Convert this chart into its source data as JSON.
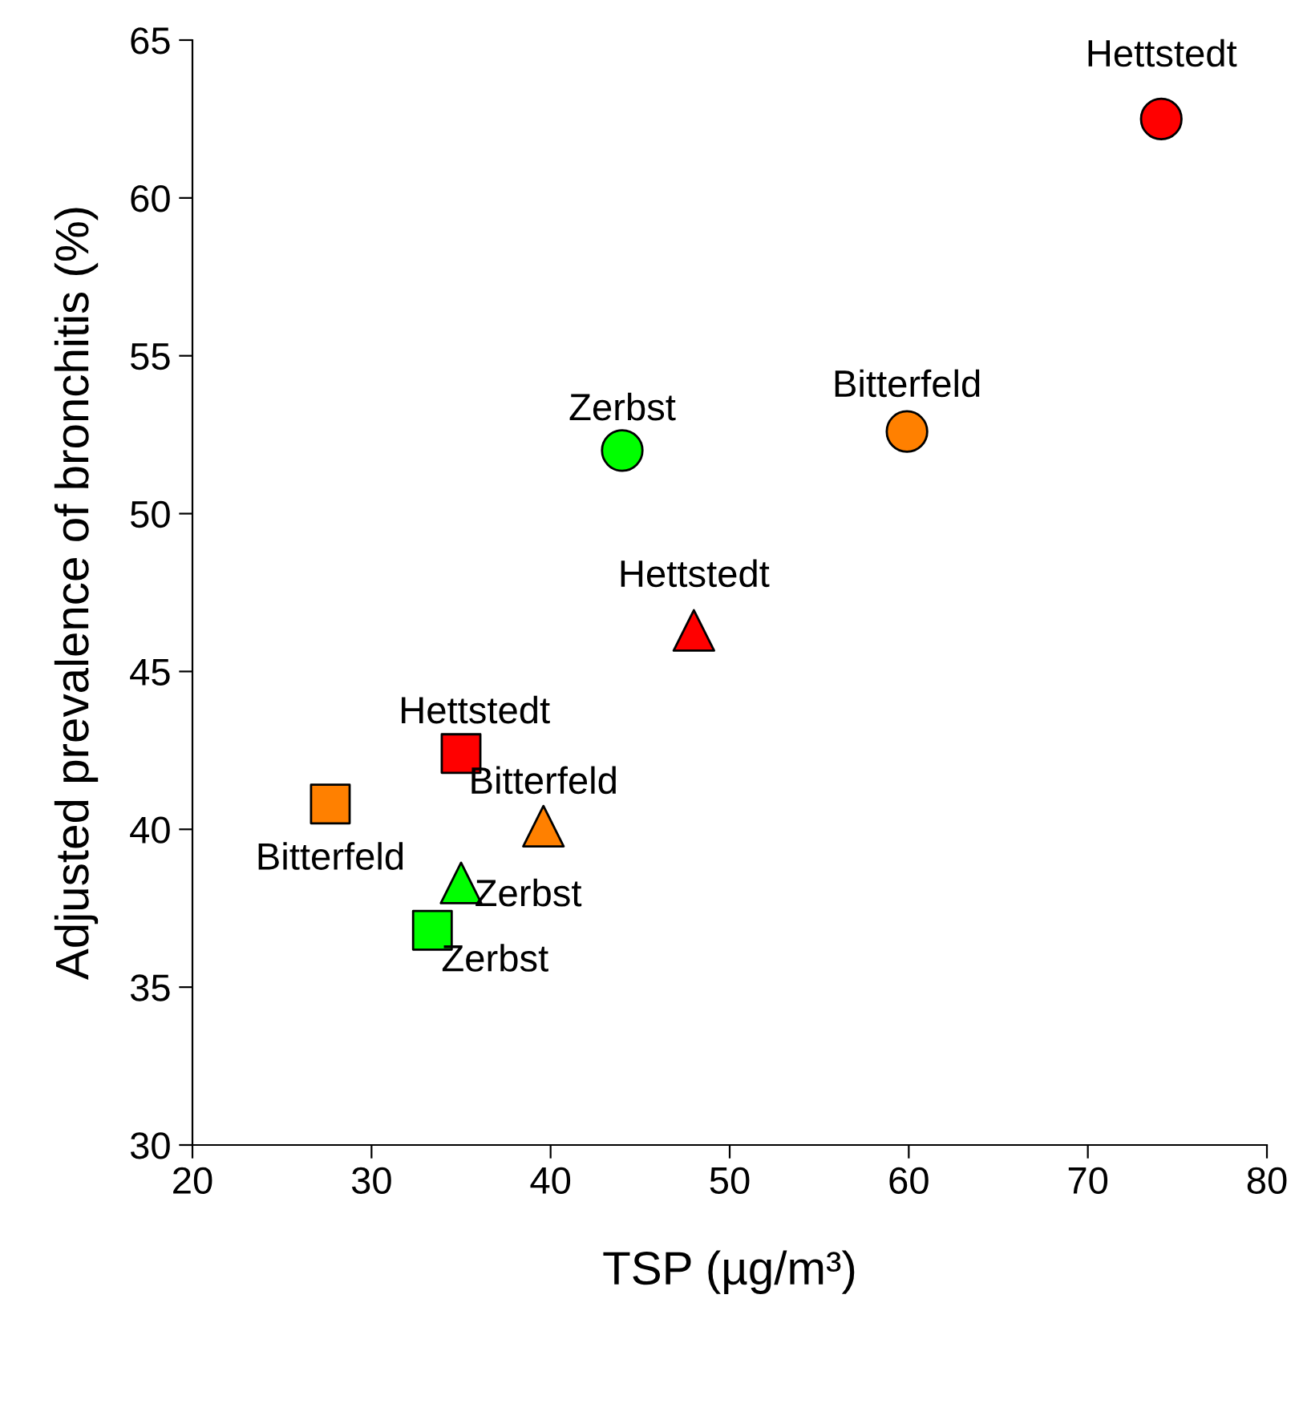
{
  "chart_data": {
    "type": "scatter",
    "xlabel": "TSP (µg/m³)",
    "ylabel": "Adjusted prevalence of bronchitis (%)",
    "xlim": [
      20,
      80
    ],
    "xticks": [
      20,
      30,
      40,
      50,
      60,
      70,
      80
    ],
    "ylim": [
      30,
      65
    ],
    "yticks": [
      30,
      35,
      40,
      45,
      50,
      55,
      60,
      65
    ],
    "grid": false,
    "legend": false,
    "series": [
      {
        "marker": "circle",
        "x": [
          74.1,
          59.9,
          44.0
        ],
        "values": [
          62.5,
          52.6,
          52.0
        ],
        "colors": [
          "#ff0000",
          "#ff8000",
          "#00ff00"
        ]
      },
      {
        "marker": "triangle",
        "x": [
          48.0,
          39.6,
          35.0
        ],
        "values": [
          46.3,
          40.1,
          38.3
        ],
        "colors": [
          "#ff0000",
          "#ff8000",
          "#00ff00"
        ]
      },
      {
        "marker": "square",
        "x": [
          35.0,
          27.7,
          33.4
        ],
        "values": [
          42.4,
          40.8,
          36.8
        ],
        "colors": [
          "#ff0000",
          "#ff8000",
          "#00ff00"
        ]
      }
    ],
    "annotations": [
      {
        "text": "Hettstedt",
        "x": 74.1,
        "y": 62.5
      },
      {
        "text": "Bitterfeld",
        "x": 59.9,
        "y": 52.6
      },
      {
        "text": "Zerbst",
        "x": 44.0,
        "y": 52.0
      },
      {
        "text": "Hettstedt",
        "x": 48.0,
        "y": 46.3
      },
      {
        "text": "Bitterfeld",
        "x": 39.6,
        "y": 40.1
      },
      {
        "text": "Zerbst",
        "x": 35.0,
        "y": 38.3
      },
      {
        "text": "Hettstedt",
        "x": 35.0,
        "y": 42.4
      },
      {
        "text": "Bitterfeld",
        "x": 27.7,
        "y": 40.8
      },
      {
        "text": "Zerbst",
        "x": 33.4,
        "y": 36.8
      }
    ]
  }
}
